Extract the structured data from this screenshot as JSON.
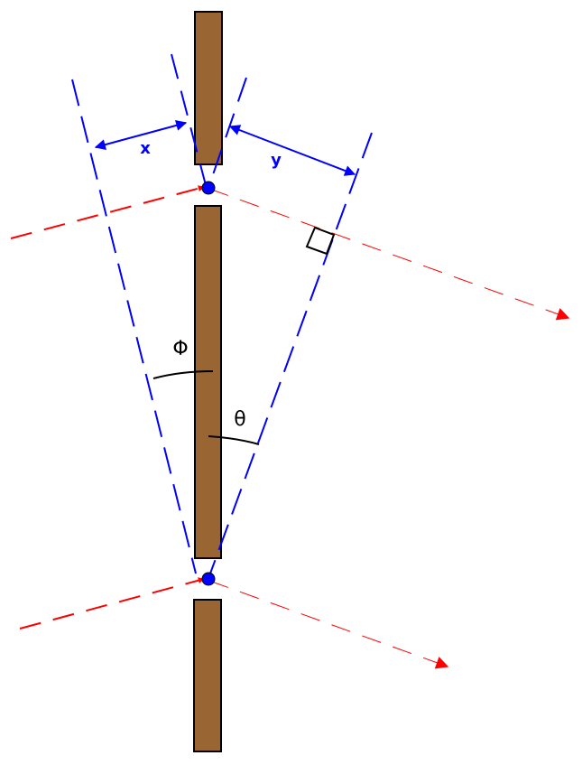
{
  "diagram": {
    "labels": {
      "x": "x",
      "y": "y",
      "phi": "Φ",
      "theta": "θ"
    },
    "colors": {
      "barrier_fill": "#996633",
      "barrier_stroke": "#000000",
      "ray": "#ff0000",
      "construction": "#0000ff",
      "slit_dot": "#0000ff",
      "angle_arc": "#000000"
    },
    "icons": {
      "right_angle": "right-angle-marker",
      "arrowhead": "arrowhead"
    }
  }
}
